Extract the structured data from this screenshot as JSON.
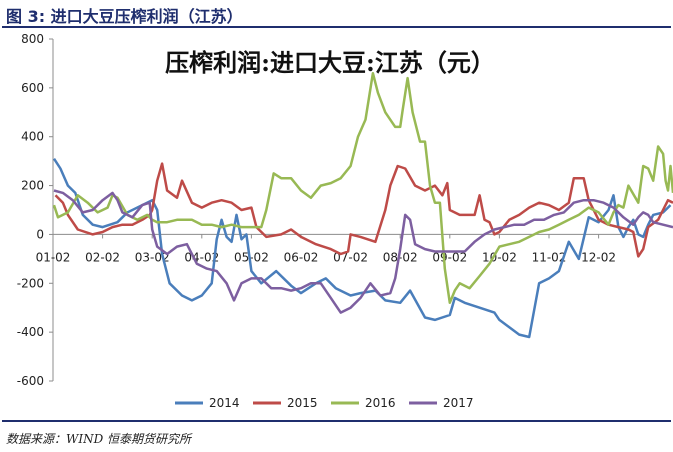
{
  "figure": {
    "label": "图 3:  进口大豆压榨利润（江苏）",
    "source": "数据来源：WIND  恒泰期货研究所"
  },
  "colors": {
    "2014": "#4a7ebb",
    "2015": "#be4b48",
    "2016": "#98b954",
    "2017": "#7d5fa0",
    "header": "#1f2e6e"
  },
  "chart_data": {
    "type": "line",
    "title": "压榨利润:进口大豆:江苏（元）",
    "xlabel": "",
    "ylabel": "",
    "ylim": [
      -600,
      800
    ],
    "yticks": [
      "800",
      "600",
      "400",
      "200",
      "0",
      "-200",
      "-400",
      "-600"
    ],
    "ytick_values": [
      800,
      600,
      400,
      200,
      0,
      -200,
      -400,
      -600
    ],
    "xticks": [
      "01-02",
      "02-02",
      "03-02",
      "04-02",
      "05-02",
      "06-02",
      "07-02",
      "08-02",
      "09-02",
      "10-02",
      "11-02",
      "12-02"
    ],
    "xlim": [
      0,
      12
    ],
    "grid": false,
    "legend": "bottom",
    "series": [
      {
        "name": "2014",
        "color_key": "2014",
        "points": [
          [
            0.02,
            310
          ],
          [
            0.15,
            270
          ],
          [
            0.3,
            200
          ],
          [
            0.45,
            170
          ],
          [
            0.6,
            80
          ],
          [
            0.8,
            40
          ],
          [
            1.0,
            30
          ],
          [
            1.3,
            50
          ],
          [
            1.5,
            90
          ],
          [
            1.8,
            120
          ],
          [
            2.0,
            140
          ],
          [
            2.1,
            100
          ],
          [
            2.2,
            -80
          ],
          [
            2.35,
            -200
          ],
          [
            2.6,
            -250
          ],
          [
            2.8,
            -270
          ],
          [
            3.0,
            -250
          ],
          [
            3.2,
            -200
          ],
          [
            3.3,
            -20
          ],
          [
            3.4,
            60
          ],
          [
            3.5,
            -10
          ],
          [
            3.6,
            -30
          ],
          [
            3.7,
            80
          ],
          [
            3.8,
            -20
          ],
          [
            3.9,
            0
          ],
          [
            4.0,
            -150
          ],
          [
            4.2,
            -200
          ],
          [
            4.5,
            -150
          ],
          [
            4.8,
            -210
          ],
          [
            5.0,
            -240
          ],
          [
            5.3,
            -200
          ],
          [
            5.5,
            -180
          ],
          [
            5.7,
            -220
          ],
          [
            6.0,
            -250
          ],
          [
            6.2,
            -240
          ],
          [
            6.5,
            -230
          ],
          [
            6.7,
            -270
          ],
          [
            7.0,
            -280
          ],
          [
            7.2,
            -230
          ],
          [
            7.5,
            -340
          ],
          [
            7.7,
            -350
          ],
          [
            8.0,
            -330
          ],
          [
            8.1,
            -260
          ],
          [
            8.3,
            -280
          ],
          [
            8.6,
            -300
          ],
          [
            8.9,
            -320
          ],
          [
            9.0,
            -350
          ],
          [
            9.2,
            -380
          ],
          [
            9.4,
            -410
          ],
          [
            9.6,
            -420
          ],
          [
            9.8,
            -200
          ],
          [
            10.0,
            -180
          ],
          [
            10.2,
            -150
          ],
          [
            10.4,
            -30
          ],
          [
            10.6,
            -100
          ],
          [
            10.8,
            70
          ],
          [
            11.0,
            50
          ],
          [
            11.2,
            100
          ],
          [
            11.3,
            160
          ],
          [
            11.4,
            30
          ],
          [
            11.5,
            -10
          ],
          [
            11.6,
            30
          ],
          [
            11.7,
            60
          ],
          [
            11.8,
            0
          ],
          [
            11.9,
            -10
          ],
          [
            12.0,
            40
          ],
          [
            12.1,
            80
          ],
          [
            12.3,
            90
          ],
          [
            12.45,
            120
          ]
        ]
      },
      {
        "name": "2015",
        "color_key": "2015",
        "points": [
          [
            0.05,
            160
          ],
          [
            0.2,
            130
          ],
          [
            0.3,
            80
          ],
          [
            0.5,
            20
          ],
          [
            0.8,
            0
          ],
          [
            1.0,
            10
          ],
          [
            1.2,
            30
          ],
          [
            1.4,
            40
          ],
          [
            1.6,
            40
          ],
          [
            1.8,
            60
          ],
          [
            1.95,
            80
          ],
          [
            2.0,
            100
          ],
          [
            2.1,
            220
          ],
          [
            2.2,
            290
          ],
          [
            2.3,
            180
          ],
          [
            2.5,
            150
          ],
          [
            2.6,
            220
          ],
          [
            2.8,
            130
          ],
          [
            3.0,
            110
          ],
          [
            3.2,
            130
          ],
          [
            3.4,
            140
          ],
          [
            3.6,
            130
          ],
          [
            3.8,
            100
          ],
          [
            4.0,
            110
          ],
          [
            4.1,
            30
          ],
          [
            4.3,
            -10
          ],
          [
            4.6,
            0
          ],
          [
            4.8,
            20
          ],
          [
            5.0,
            -10
          ],
          [
            5.3,
            -40
          ],
          [
            5.6,
            -60
          ],
          [
            5.8,
            -80
          ],
          [
            5.95,
            -70
          ],
          [
            6.0,
            0
          ],
          [
            6.2,
            -10
          ],
          [
            6.5,
            -30
          ],
          [
            6.7,
            100
          ],
          [
            6.8,
            200
          ],
          [
            6.95,
            280
          ],
          [
            7.1,
            270
          ],
          [
            7.3,
            200
          ],
          [
            7.5,
            180
          ],
          [
            7.7,
            200
          ],
          [
            7.85,
            160
          ],
          [
            7.95,
            210
          ],
          [
            8.0,
            100
          ],
          [
            8.2,
            80
          ],
          [
            8.5,
            80
          ],
          [
            8.6,
            160
          ],
          [
            8.7,
            60
          ],
          [
            8.8,
            50
          ],
          [
            8.9,
            0
          ],
          [
            9.0,
            10
          ],
          [
            9.2,
            60
          ],
          [
            9.4,
            80
          ],
          [
            9.6,
            110
          ],
          [
            9.8,
            130
          ],
          [
            10.0,
            120
          ],
          [
            10.2,
            100
          ],
          [
            10.4,
            130
          ],
          [
            10.5,
            230
          ],
          [
            10.7,
            230
          ],
          [
            10.8,
            140
          ],
          [
            11.0,
            60
          ],
          [
            11.2,
            40
          ],
          [
            11.4,
            30
          ],
          [
            11.6,
            20
          ],
          [
            11.7,
            10
          ],
          [
            11.8,
            -90
          ],
          [
            11.9,
            -60
          ],
          [
            12.0,
            30
          ],
          [
            12.2,
            60
          ],
          [
            12.4,
            140
          ],
          [
            12.5,
            130
          ]
        ]
      },
      {
        "name": "2016",
        "color_key": "2016",
        "points": [
          [
            0.02,
            120
          ],
          [
            0.1,
            70
          ],
          [
            0.3,
            90
          ],
          [
            0.5,
            160
          ],
          [
            0.7,
            130
          ],
          [
            0.9,
            90
          ],
          [
            1.1,
            110
          ],
          [
            1.2,
            160
          ],
          [
            1.3,
            150
          ],
          [
            1.5,
            80
          ],
          [
            1.7,
            60
          ],
          [
            1.9,
            80
          ],
          [
            2.0,
            60
          ],
          [
            2.1,
            50
          ],
          [
            2.3,
            50
          ],
          [
            2.5,
            60
          ],
          [
            2.8,
            60
          ],
          [
            3.0,
            40
          ],
          [
            3.2,
            40
          ],
          [
            3.4,
            30
          ],
          [
            3.6,
            40
          ],
          [
            3.8,
            30
          ],
          [
            4.0,
            30
          ],
          [
            4.2,
            30
          ],
          [
            4.3,
            100
          ],
          [
            4.45,
            250
          ],
          [
            4.6,
            230
          ],
          [
            4.8,
            230
          ],
          [
            5.0,
            180
          ],
          [
            5.2,
            150
          ],
          [
            5.4,
            200
          ],
          [
            5.6,
            210
          ],
          [
            5.8,
            230
          ],
          [
            6.0,
            280
          ],
          [
            6.15,
            400
          ],
          [
            6.3,
            470
          ],
          [
            6.45,
            660
          ],
          [
            6.55,
            580
          ],
          [
            6.7,
            500
          ],
          [
            6.9,
            440
          ],
          [
            7.0,
            440
          ],
          [
            7.05,
            510
          ],
          [
            7.15,
            640
          ],
          [
            7.25,
            500
          ],
          [
            7.4,
            380
          ],
          [
            7.5,
            380
          ],
          [
            7.6,
            200
          ],
          [
            7.7,
            130
          ],
          [
            7.8,
            130
          ],
          [
            7.9,
            -140
          ],
          [
            8.0,
            -280
          ],
          [
            8.1,
            -230
          ],
          [
            8.2,
            -200
          ],
          [
            8.4,
            -220
          ],
          [
            8.6,
            -170
          ],
          [
            8.8,
            -120
          ],
          [
            9.0,
            -50
          ],
          [
            9.2,
            -40
          ],
          [
            9.4,
            -30
          ],
          [
            9.6,
            -10
          ],
          [
            9.8,
            10
          ],
          [
            10.0,
            20
          ],
          [
            10.2,
            40
          ],
          [
            10.4,
            60
          ],
          [
            10.6,
            80
          ],
          [
            10.8,
            110
          ],
          [
            11.0,
            90
          ],
          [
            11.2,
            40
          ],
          [
            11.3,
            90
          ],
          [
            11.4,
            120
          ],
          [
            11.5,
            110
          ],
          [
            11.6,
            200
          ],
          [
            11.8,
            130
          ],
          [
            11.9,
            280
          ],
          [
            12.0,
            270
          ],
          [
            12.1,
            220
          ],
          [
            12.2,
            360
          ],
          [
            12.3,
            330
          ],
          [
            12.35,
            220
          ],
          [
            12.4,
            180
          ],
          [
            12.45,
            280
          ],
          [
            12.5,
            170
          ]
        ]
      },
      {
        "name": "2017",
        "color_key": "2017",
        "points": [
          [
            0.02,
            180
          ],
          [
            0.2,
            170
          ],
          [
            0.4,
            140
          ],
          [
            0.6,
            90
          ],
          [
            0.8,
            100
          ],
          [
            1.0,
            140
          ],
          [
            1.2,
            170
          ],
          [
            1.3,
            140
          ],
          [
            1.4,
            90
          ],
          [
            1.6,
            70
          ],
          [
            1.8,
            120
          ],
          [
            1.95,
            130
          ],
          [
            2.0,
            20
          ],
          [
            2.1,
            -50
          ],
          [
            2.3,
            -80
          ],
          [
            2.5,
            -50
          ],
          [
            2.7,
            -40
          ],
          [
            2.9,
            -120
          ],
          [
            3.1,
            -140
          ],
          [
            3.3,
            -150
          ],
          [
            3.5,
            -200
          ],
          [
            3.65,
            -270
          ],
          [
            3.8,
            -200
          ],
          [
            4.0,
            -180
          ],
          [
            4.2,
            -180
          ],
          [
            4.4,
            -220
          ],
          [
            4.6,
            -220
          ],
          [
            4.8,
            -230
          ],
          [
            5.0,
            -220
          ],
          [
            5.2,
            -200
          ],
          [
            5.4,
            -200
          ],
          [
            5.6,
            -260
          ],
          [
            5.8,
            -320
          ],
          [
            6.0,
            -300
          ],
          [
            6.2,
            -260
          ],
          [
            6.4,
            -200
          ],
          [
            6.6,
            -250
          ],
          [
            6.8,
            -240
          ],
          [
            6.9,
            -180
          ],
          [
            7.0,
            -60
          ],
          [
            7.1,
            80
          ],
          [
            7.2,
            60
          ],
          [
            7.3,
            -40
          ],
          [
            7.5,
            -60
          ],
          [
            7.7,
            -70
          ],
          [
            7.9,
            -70
          ],
          [
            8.1,
            -70
          ],
          [
            8.3,
            -70
          ],
          [
            8.5,
            -30
          ],
          [
            8.7,
            0
          ],
          [
            8.9,
            20
          ],
          [
            9.1,
            30
          ],
          [
            9.3,
            40
          ],
          [
            9.5,
            40
          ],
          [
            9.7,
            60
          ],
          [
            9.9,
            60
          ],
          [
            10.1,
            80
          ],
          [
            10.3,
            90
          ],
          [
            10.5,
            130
          ],
          [
            10.7,
            140
          ],
          [
            10.9,
            140
          ],
          [
            11.1,
            130
          ],
          [
            11.3,
            110
          ],
          [
            11.5,
            70
          ],
          [
            11.7,
            40
          ],
          [
            11.8,
            70
          ],
          [
            11.9,
            90
          ],
          [
            12.0,
            80
          ],
          [
            12.1,
            50
          ],
          [
            12.3,
            40
          ],
          [
            12.5,
            30
          ]
        ]
      }
    ]
  }
}
